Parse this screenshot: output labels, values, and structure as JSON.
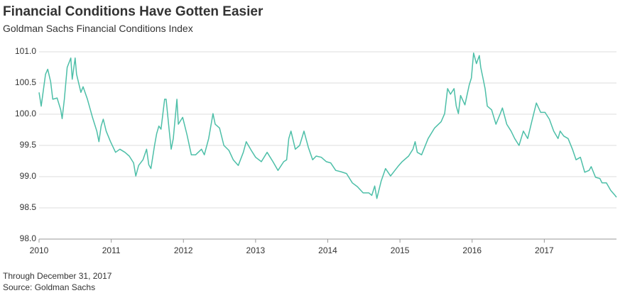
{
  "chart_data": {
    "type": "line",
    "title": "Financial Conditions Have Gotten Easier",
    "subtitle": "Goldman Sachs Financial Conditions Index",
    "note": "Through December 31, 2017",
    "source": "Source: Goldman Sachs",
    "xlim": [
      2010,
      2018
    ],
    "xticks": [
      2010,
      2011,
      2012,
      2013,
      2014,
      2015,
      2016,
      2017
    ],
    "ylim": [
      98,
      101
    ],
    "yticks": [
      {
        "value": 98,
        "label": "98.0"
      },
      98.5,
      {
        "value": 99,
        "label": "99.0"
      },
      99.5,
      {
        "value": 100,
        "label": "100.0"
      },
      100.5,
      {
        "value": 101,
        "label": "101.0"
      }
    ],
    "grid": true,
    "series": [
      {
        "name": "Goldman Sachs Financial Conditions Index",
        "color": "#4dbfa8",
        "x": [
          2010.0,
          2010.03,
          2010.09,
          2010.12,
          2010.16,
          2010.19,
          2010.25,
          2010.3,
          2010.32,
          2010.35,
          2010.39,
          2010.44,
          2010.46,
          2010.5,
          2010.52,
          2010.58,
          2010.61,
          2010.67,
          2010.74,
          2010.8,
          2010.83,
          2010.86,
          2010.89,
          2010.93,
          2010.99,
          2011.06,
          2011.12,
          2011.19,
          2011.25,
          2011.31,
          2011.34,
          2011.38,
          2011.44,
          2011.49,
          2011.52,
          2011.55,
          2011.6,
          2011.63,
          2011.66,
          2011.69,
          2011.74,
          2011.76,
          2011.8,
          2011.83,
          2011.86,
          2011.91,
          2011.93,
          2011.99,
          2012.05,
          2012.11,
          2012.17,
          2012.25,
          2012.29,
          2012.35,
          2012.41,
          2012.44,
          2012.5,
          2012.56,
          2012.63,
          2012.69,
          2012.76,
          2012.83,
          2012.87,
          2012.94,
          2013.0,
          2013.08,
          2013.16,
          2013.24,
          2013.31,
          2013.39,
          2013.43,
          2013.46,
          2013.49,
          2013.55,
          2013.61,
          2013.67,
          2013.73,
          2013.79,
          2013.84,
          2013.91,
          2013.98,
          2014.04,
          2014.11,
          2014.18,
          2014.26,
          2014.34,
          2014.41,
          2014.49,
          2014.57,
          2014.61,
          2014.65,
          2014.68,
          2014.74,
          2014.8,
          2014.87,
          2014.97,
          2015.03,
          2015.12,
          2015.18,
          2015.21,
          2015.24,
          2015.3,
          2015.39,
          2015.48,
          2015.57,
          2015.62,
          2015.66,
          2015.7,
          2015.75,
          2015.78,
          2015.81,
          2015.84,
          2015.9,
          2015.96,
          2015.99,
          2016.02,
          2016.06,
          2016.1,
          2016.12,
          2016.15,
          2016.18,
          2016.21,
          2016.27,
          2016.33,
          2016.39,
          2016.42,
          2016.48,
          2016.54,
          2016.59,
          2016.65,
          2016.71,
          2016.77,
          2016.83,
          2016.89,
          2016.95,
          2017.01,
          2017.07,
          2017.13,
          2017.19,
          2017.22,
          2017.27,
          2017.33,
          2017.39,
          2017.44,
          2017.5,
          2017.56,
          2017.62,
          2017.65,
          2017.71,
          2017.77,
          2017.8,
          2017.86,
          2017.92,
          2017.98,
          2018.0
        ],
        "values": [
          100.35,
          100.13,
          100.64,
          100.72,
          100.52,
          100.24,
          100.26,
          100.07,
          99.93,
          100.24,
          100.75,
          100.9,
          100.56,
          100.9,
          100.64,
          100.35,
          100.44,
          100.24,
          99.95,
          99.73,
          99.56,
          99.81,
          99.92,
          99.73,
          99.56,
          99.39,
          99.44,
          99.39,
          99.33,
          99.22,
          99.01,
          99.18,
          99.27,
          99.44,
          99.19,
          99.13,
          99.5,
          99.69,
          99.81,
          99.76,
          100.24,
          100.24,
          99.78,
          99.44,
          99.61,
          100.24,
          99.84,
          99.95,
          99.67,
          99.35,
          99.35,
          99.44,
          99.35,
          99.61,
          100.01,
          99.84,
          99.78,
          99.5,
          99.42,
          99.27,
          99.18,
          99.39,
          99.56,
          99.42,
          99.31,
          99.24,
          99.39,
          99.24,
          99.1,
          99.24,
          99.27,
          99.61,
          99.73,
          99.44,
          99.5,
          99.73,
          99.47,
          99.27,
          99.33,
          99.31,
          99.24,
          99.22,
          99.1,
          99.08,
          99.05,
          98.9,
          98.84,
          98.74,
          98.74,
          98.7,
          98.85,
          98.65,
          98.93,
          99.13,
          99.01,
          99.16,
          99.24,
          99.33,
          99.44,
          99.56,
          99.39,
          99.35,
          99.61,
          99.78,
          99.88,
          100.01,
          100.41,
          100.32,
          100.41,
          100.13,
          100.01,
          100.3,
          100.15,
          100.47,
          100.58,
          100.98,
          100.81,
          100.94,
          100.75,
          100.58,
          100.41,
          100.13,
          100.07,
          99.84,
          100.01,
          100.1,
          99.84,
          99.73,
          99.61,
          99.5,
          99.73,
          99.61,
          99.9,
          100.18,
          100.03,
          100.03,
          99.92,
          99.73,
          99.61,
          99.73,
          99.65,
          99.61,
          99.44,
          99.27,
          99.31,
          99.07,
          99.1,
          99.16,
          98.99,
          98.97,
          98.9,
          98.9,
          98.78,
          98.7,
          98.67
        ]
      }
    ]
  }
}
